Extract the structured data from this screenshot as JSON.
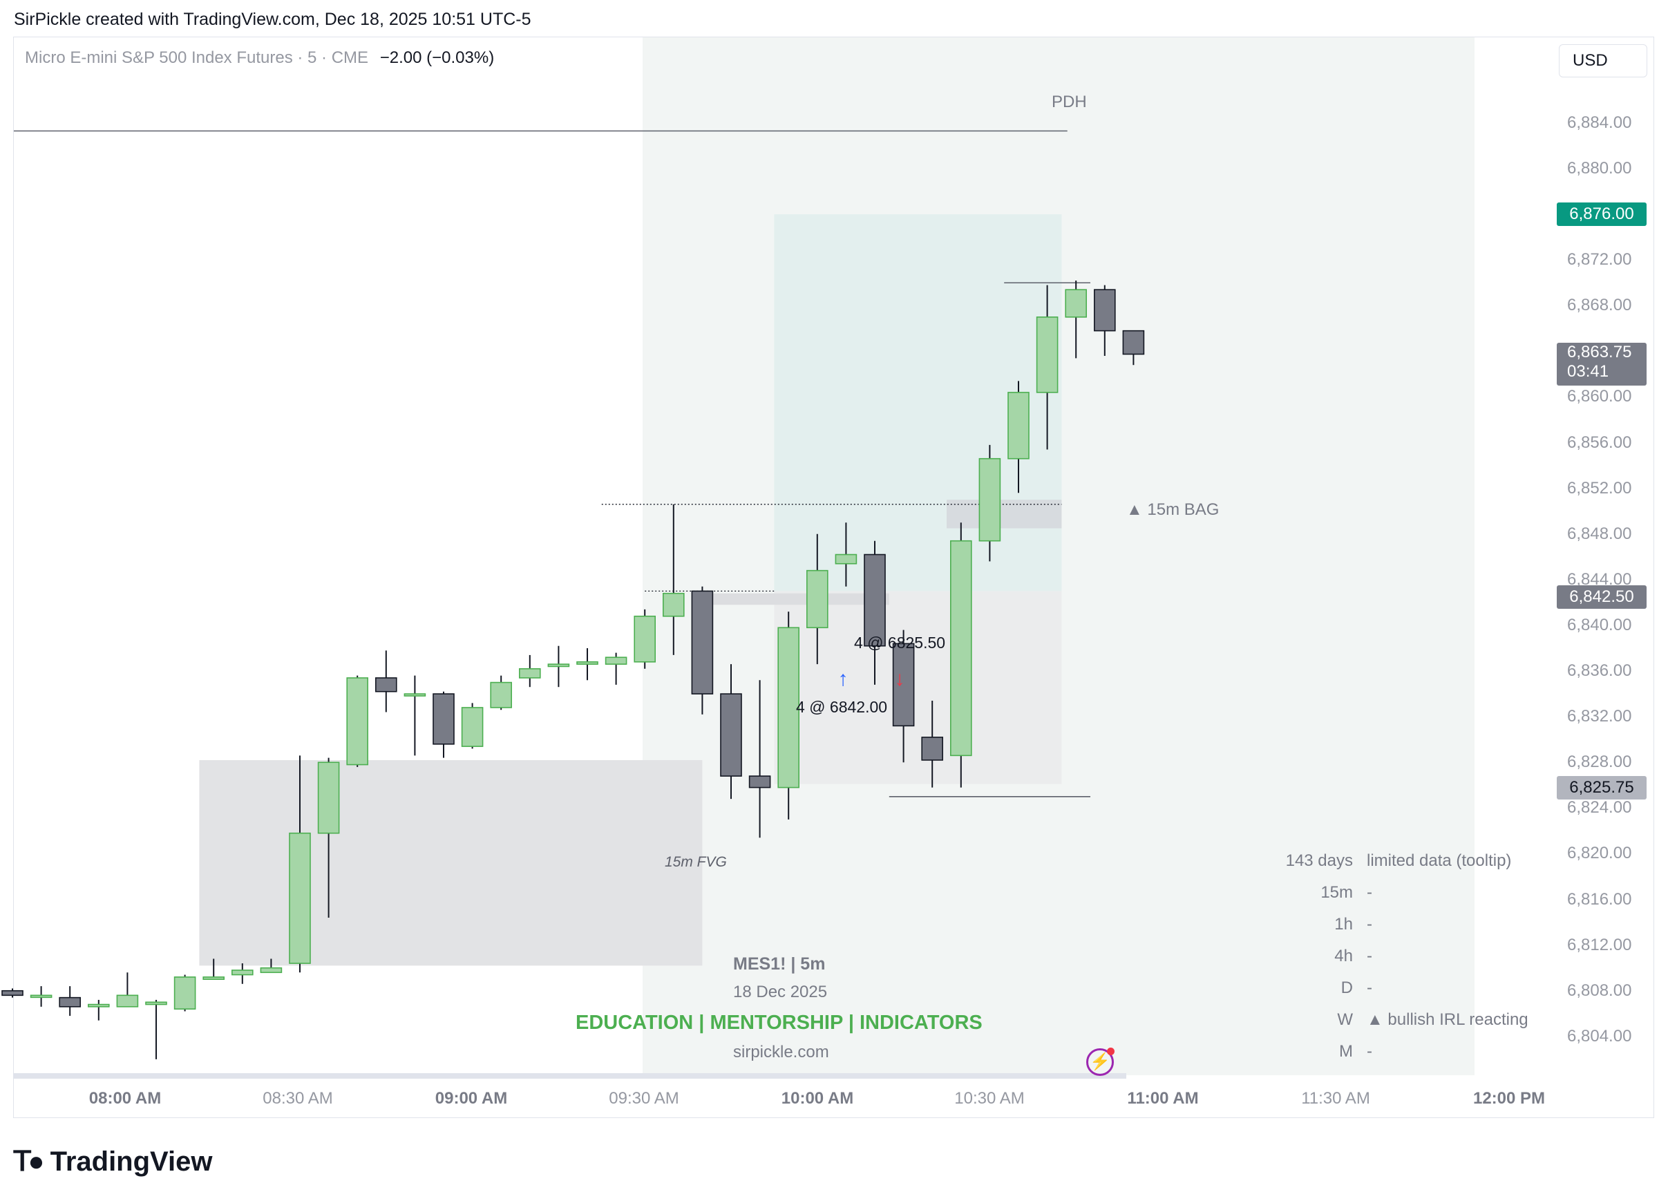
{
  "header": {
    "credit": "SirPickle created with TradingView.com, Dec 18, 2025 10:51 UTC-5"
  },
  "legend": {
    "symbol": "Micro E-mini S&P 500 Index Futures · 5 · CME",
    "change": "−2.00 (−0.03%)"
  },
  "toolbar": {
    "currency": "USD"
  },
  "colors": {
    "up_body": "#a5d6a7",
    "up_border": "#4caf50",
    "down_body": "#787b86",
    "wick": "#131722",
    "current_price_bg": "#787b86",
    "last_high_bg": "#089981",
    "text_green": "#4caf50"
  },
  "chart_data": {
    "type": "candlestick",
    "timeframe": "5m",
    "price_axis": {
      "ticks": [
        "6,884.00",
        "6,880.00",
        "6,872.00",
        "6,868.00",
        "6,864.00",
        "6,860.00",
        "6,856.00",
        "6,852.00",
        "6,848.00",
        "6,844.00",
        "6,840.00",
        "6,836.00",
        "6,832.00",
        "6,828.00",
        "6,824.00",
        "6,820.00",
        "6,816.00",
        "6,812.00",
        "6,808.00",
        "6,804.00"
      ],
      "ylim": [
        6800.6,
        6891.5
      ]
    },
    "time_axis": {
      "ticks": [
        {
          "label": "08:00 AM",
          "bold": true
        },
        {
          "label": "08:30 AM",
          "bold": false
        },
        {
          "label": "09:00 AM",
          "bold": true
        },
        {
          "label": "09:30 AM",
          "bold": false
        },
        {
          "label": "10:00 AM",
          "bold": true
        },
        {
          "label": "10:30 AM",
          "bold": false
        },
        {
          "label": "11:00 AM",
          "bold": true
        },
        {
          "label": "11:30 AM",
          "bold": false
        },
        {
          "label": "12:00 PM",
          "bold": true
        }
      ]
    },
    "price_labels": [
      {
        "text": "6,876.00",
        "value": 6876.0,
        "style": "last_high_bg"
      },
      {
        "text": "6,863.75",
        "sub": "03:41",
        "value": 6863.75,
        "style": "current_price_bg"
      },
      {
        "text": "6,842.50",
        "value": 6842.5,
        "style": "current_price_bg"
      },
      {
        "text": "6,825.75",
        "value": 6825.75,
        "style": "light"
      }
    ],
    "candles": [
      {
        "o": 6808.0,
        "h": 6808.2,
        "l": 6807.4,
        "c": 6807.6
      },
      {
        "o": 6807.6,
        "h": 6808.4,
        "l": 6806.6,
        "c": 6807.6
      },
      {
        "o": 6807.4,
        "h": 6808.4,
        "l": 6805.8,
        "c": 6806.6
      },
      {
        "o": 6806.6,
        "h": 6807.2,
        "l": 6805.4,
        "c": 6806.8
      },
      {
        "o": 6806.6,
        "h": 6809.6,
        "l": 6806.6,
        "c": 6807.6
      },
      {
        "o": 6806.8,
        "h": 6807.2,
        "l": 6802.0,
        "c": 6807.0
      },
      {
        "o": 6806.4,
        "h": 6809.4,
        "l": 6806.2,
        "c": 6809.2
      },
      {
        "o": 6809.0,
        "h": 6810.8,
        "l": 6809.0,
        "c": 6809.2
      },
      {
        "o": 6809.4,
        "h": 6810.4,
        "l": 6808.6,
        "c": 6809.8
      },
      {
        "o": 6809.6,
        "h": 6810.8,
        "l": 6809.6,
        "c": 6810.0
      },
      {
        "o": 6810.4,
        "h": 6828.6,
        "l": 6809.6,
        "c": 6821.8
      },
      {
        "o": 6821.8,
        "h": 6828.4,
        "l": 6814.4,
        "c": 6828.0
      },
      {
        "o": 6827.8,
        "h": 6835.6,
        "l": 6827.6,
        "c": 6835.4
      },
      {
        "o": 6835.4,
        "h": 6837.8,
        "l": 6832.4,
        "c": 6834.2
      },
      {
        "o": 6834.0,
        "h": 6835.6,
        "l": 6828.6,
        "c": 6834.0
      },
      {
        "o": 6834.0,
        "h": 6834.2,
        "l": 6828.4,
        "c": 6829.6
      },
      {
        "o": 6829.4,
        "h": 6833.2,
        "l": 6829.2,
        "c": 6832.8
      },
      {
        "o": 6832.8,
        "h": 6835.6,
        "l": 6832.6,
        "c": 6835.0
      },
      {
        "o": 6835.4,
        "h": 6837.4,
        "l": 6834.6,
        "c": 6836.2
      },
      {
        "o": 6836.4,
        "h": 6838.2,
        "l": 6834.6,
        "c": 6836.6
      },
      {
        "o": 6836.6,
        "h": 6838.0,
        "l": 6835.2,
        "c": 6836.8
      },
      {
        "o": 6836.6,
        "h": 6837.6,
        "l": 6834.8,
        "c": 6837.2
      },
      {
        "o": 6836.8,
        "h": 6841.4,
        "l": 6836.2,
        "c": 6840.8
      },
      {
        "o": 6840.8,
        "h": 6850.6,
        "l": 6837.4,
        "c": 6842.8
      },
      {
        "o": 6843.0,
        "h": 6843.4,
        "l": 6832.2,
        "c": 6834.0
      },
      {
        "o": 6834.0,
        "h": 6836.6,
        "l": 6824.8,
        "c": 6826.8
      },
      {
        "o": 6826.8,
        "h": 6835.2,
        "l": 6821.4,
        "c": 6825.8
      },
      {
        "o": 6825.8,
        "h": 6841.2,
        "l": 6823.0,
        "c": 6839.8
      },
      {
        "o": 6839.8,
        "h": 6848.0,
        "l": 6836.6,
        "c": 6844.8
      },
      {
        "o": 6845.4,
        "h": 6849.0,
        "l": 6843.4,
        "c": 6846.2
      },
      {
        "o": 6846.2,
        "h": 6847.4,
        "l": 6834.8,
        "c": 6838.2
      },
      {
        "o": 6838.4,
        "h": 6839.6,
        "l": 6828.0,
        "c": 6831.2
      },
      {
        "o": 6830.2,
        "h": 6833.4,
        "l": 6825.8,
        "c": 6828.2
      },
      {
        "o": 6828.6,
        "h": 6849.0,
        "l": 6825.8,
        "c": 6847.4
      },
      {
        "o": 6847.4,
        "h": 6855.8,
        "l": 6845.6,
        "c": 6854.6
      },
      {
        "o": 6854.6,
        "h": 6861.4,
        "l": 6851.6,
        "c": 6860.4
      },
      {
        "o": 6860.4,
        "h": 6869.8,
        "l": 6855.4,
        "c": 6867.0
      },
      {
        "o": 6867.0,
        "h": 6870.2,
        "l": 6863.4,
        "c": 6869.4
      },
      {
        "o": 6869.4,
        "h": 6869.8,
        "l": 6863.6,
        "c": 6865.8
      },
      {
        "o": 6865.8,
        "h": 6865.8,
        "l": 6862.8,
        "c": 6863.75
      }
    ],
    "zones": [
      {
        "name": "session-highlight",
        "x0": 21,
        "x1": 50,
        "y0": 6800.6,
        "y1": 6891.5,
        "color": "#f2f5f4"
      },
      {
        "name": "position-profit",
        "x0": 27,
        "x1": 37,
        "y0": 6843.0,
        "y1": 6876.0,
        "color": "#e3efee"
      },
      {
        "name": "position-loss",
        "x0": 27,
        "x1": 37,
        "y0": 6826.1,
        "y1": 6843.0,
        "color": "#ebeced"
      },
      {
        "name": "15m-fvg-zone",
        "x0": 7,
        "x1": 24.5,
        "y0": 6810.2,
        "y1": 6828.2,
        "color": "#e2e3e5"
      },
      {
        "name": "15m-bag-zone",
        "x0": 33,
        "x1": 37,
        "y0": 6848.5,
        "y1": 6851.0,
        "color": "#d7dbdf"
      },
      {
        "name": "entry-level-band",
        "x0": 24.5,
        "x1": 31,
        "y0": 6841.8,
        "y1": 6842.8,
        "color": "#dcdde0"
      }
    ],
    "lines": [
      {
        "name": "pdh-line",
        "x0": 0,
        "x1": 37.2,
        "y": 6883.3,
        "style": "solid"
      },
      {
        "name": "high-line",
        "x0": 35,
        "x1": 38,
        "y": 6870.0,
        "style": "solid"
      },
      {
        "name": "low-line",
        "x0": 31,
        "x1": 38,
        "y": 6825.0,
        "style": "solid"
      },
      {
        "name": "dotted-high",
        "x0": 21,
        "x1": 37,
        "y": 6850.6,
        "style": "dotted"
      },
      {
        "name": "dotted-mid",
        "x0": 22.5,
        "x1": 27,
        "y": 6843.0,
        "style": "dotted"
      }
    ],
    "annotations": [
      {
        "name": "pdh-label",
        "text": "PDH"
      },
      {
        "name": "bag-label",
        "text": "▲ 15m BAG"
      },
      {
        "name": "fvg-label",
        "text": "15m FVG"
      },
      {
        "name": "exit-label",
        "text": "4 @ 6825.50"
      },
      {
        "name": "entry-label",
        "text": "4 @ 6842.00"
      }
    ],
    "info_table": [
      {
        "k": "143 days",
        "v": "limited data (tooltip)"
      },
      {
        "k": "15m",
        "v": "-"
      },
      {
        "k": "1h",
        "v": "-"
      },
      {
        "k": "4h",
        "v": "-"
      },
      {
        "k": "D",
        "v": "-"
      },
      {
        "k": "W",
        "v": "▲ bullish IRL reacting"
      },
      {
        "k": "M",
        "v": "-"
      }
    ]
  },
  "watermark": {
    "symbol": "MES1!  |  5m",
    "date": "18 Dec 2025",
    "edu": "EDUCATION  |  MENTORSHIP  |  INDICATORS",
    "site": "sirpickle.com"
  },
  "footer": {
    "logo_text": "TradingView"
  }
}
